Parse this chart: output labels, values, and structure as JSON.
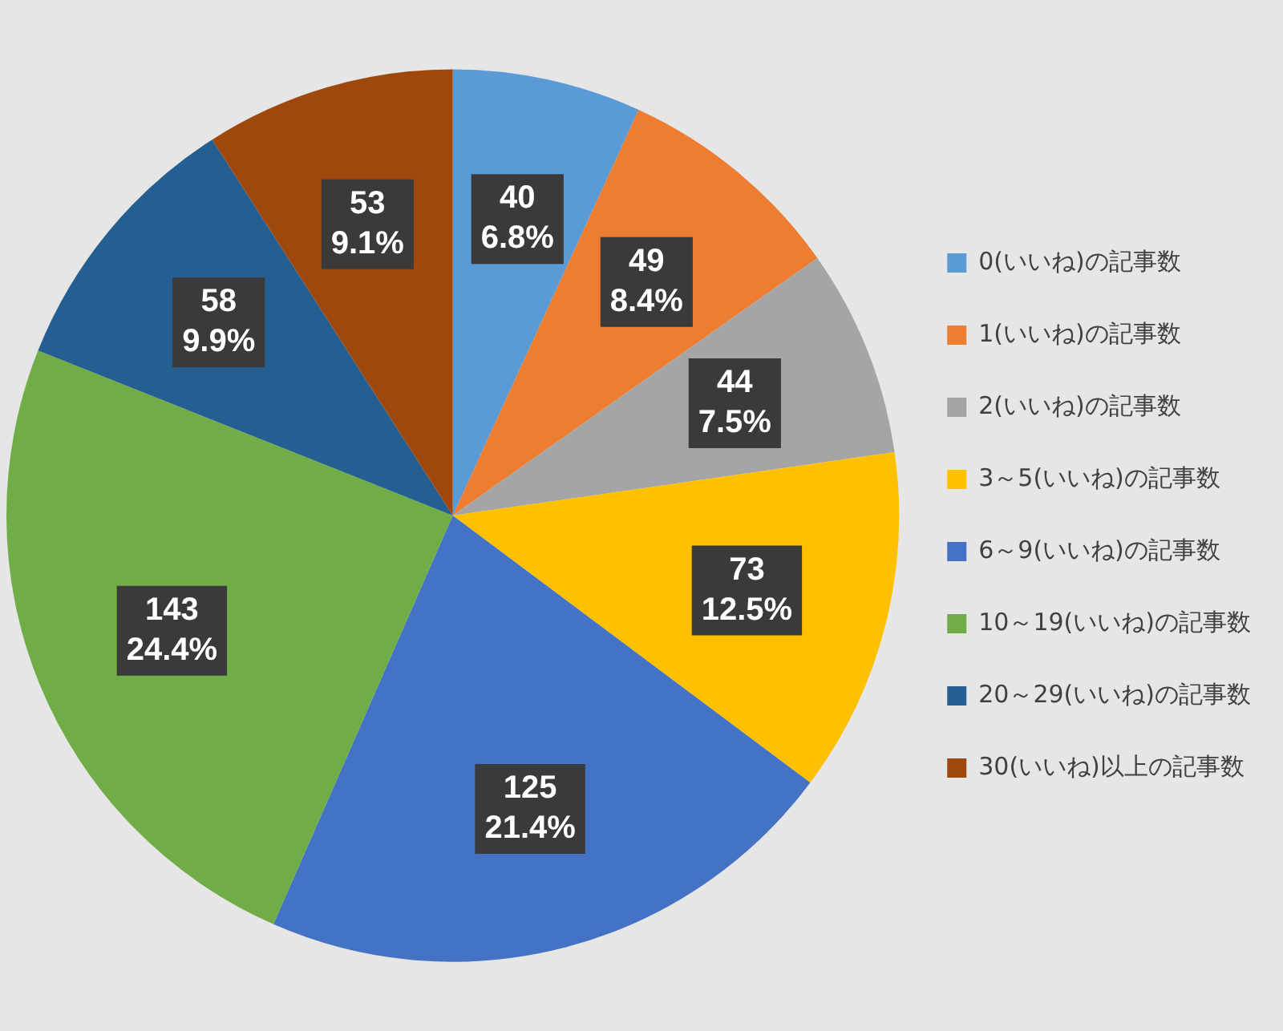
{
  "chart_data": {
    "type": "pie",
    "categories": [
      "0(いいね)の記事数",
      "1(いいね)の記事数",
      "2(いいね)の記事数",
      "3～5(いいね)の記事数",
      "6～9(いいね)の記事数",
      "10～19(いいね)の記事数",
      "20～29(いいね)の記事数",
      "30(いいね)以上の記事数"
    ],
    "values": [
      40,
      49,
      44,
      73,
      125,
      143,
      58,
      53
    ],
    "colors": [
      "#5b9bd5",
      "#ed7d31",
      "#a5a5a5",
      "#ffc000",
      "#4472c4",
      "#70ad47",
      "#255e91",
      "#9e480e"
    ],
    "value_labels": [
      "40\n6.8%",
      "49\n8.4%",
      "44\n7.5%",
      "73\n12.5%",
      "125\n21.4%",
      "143\n24.4%",
      "58\n9.9%",
      "53\n9.1%"
    ],
    "legend": "right"
  }
}
